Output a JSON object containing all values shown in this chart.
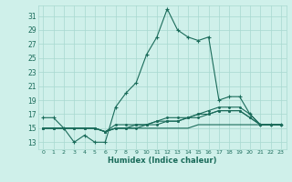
{
  "xlabel": "Humidex (Indice chaleur)",
  "bg_color": "#cff0ea",
  "grid_color": "#a8d8d0",
  "line_color": "#1a6b5a",
  "xlim": [
    -0.5,
    23.5
  ],
  "ylim": [
    12.0,
    32.5
  ],
  "xticks": [
    0,
    1,
    2,
    3,
    4,
    5,
    6,
    7,
    8,
    9,
    10,
    11,
    12,
    13,
    14,
    15,
    16,
    17,
    18,
    19,
    20,
    21,
    22,
    23
  ],
  "yticks": [
    13,
    15,
    17,
    19,
    21,
    23,
    25,
    27,
    29,
    31
  ],
  "lines": [
    {
      "x": [
        0,
        1,
        2,
        3,
        4,
        5,
        6,
        7,
        8,
        9,
        10,
        11,
        12,
        13,
        14,
        15,
        16,
        17,
        18,
        19,
        20,
        21,
        22,
        23
      ],
      "y": [
        16.5,
        16.5,
        15,
        13,
        14,
        13,
        13,
        18,
        20,
        21.5,
        25.5,
        28,
        32,
        29,
        28,
        27.5,
        28,
        19,
        19.5,
        19.5,
        17,
        15.5,
        15.5,
        15.5
      ],
      "marker": "+"
    },
    {
      "x": [
        0,
        1,
        2,
        3,
        4,
        5,
        6,
        7,
        8,
        9,
        10,
        11,
        12,
        13,
        14,
        15,
        16,
        17,
        18,
        19,
        20,
        21,
        22,
        23
      ],
      "y": [
        15,
        15,
        15,
        15,
        15,
        15,
        14.5,
        15.5,
        15.5,
        15.5,
        15.5,
        15.5,
        16,
        16,
        16.5,
        17,
        17.5,
        18,
        18,
        18,
        17,
        15.5,
        15.5,
        15.5
      ],
      "marker": "."
    },
    {
      "x": [
        0,
        1,
        2,
        3,
        4,
        5,
        6,
        7,
        8,
        9,
        10,
        11,
        12,
        13,
        14,
        15,
        16,
        17,
        18,
        19,
        20,
        21,
        22,
        23
      ],
      "y": [
        15,
        15,
        15,
        15,
        15,
        15,
        14.5,
        15,
        15,
        15,
        15.5,
        16,
        16.5,
        16.5,
        16.5,
        17,
        17,
        17.5,
        17.5,
        17.5,
        16.5,
        15.5,
        15.5,
        15.5
      ],
      "marker": "."
    },
    {
      "x": [
        0,
        1,
        2,
        3,
        4,
        5,
        6,
        7,
        8,
        9,
        10,
        11,
        12,
        13,
        14,
        15,
        16,
        17,
        18,
        19,
        20,
        21,
        22,
        23
      ],
      "y": [
        15,
        15,
        15,
        15,
        15,
        15,
        14.5,
        15,
        15,
        15.5,
        15.5,
        16,
        16,
        16,
        16.5,
        16.5,
        17,
        17.5,
        17.5,
        17.5,
        16.5,
        15.5,
        15.5,
        15.5
      ],
      "marker": "."
    },
    {
      "x": [
        0,
        1,
        2,
        3,
        4,
        5,
        6,
        7,
        8,
        9,
        10,
        11,
        12,
        13,
        14,
        15,
        16,
        17,
        18,
        19,
        20,
        21,
        22,
        23
      ],
      "y": [
        15,
        15,
        15,
        15,
        15,
        15,
        14.5,
        15,
        15,
        15,
        15,
        15,
        15,
        15,
        15,
        15.5,
        15.5,
        15.5,
        15.5,
        15.5,
        15.5,
        15.5,
        15.5,
        15.5
      ],
      "marker": null
    }
  ]
}
